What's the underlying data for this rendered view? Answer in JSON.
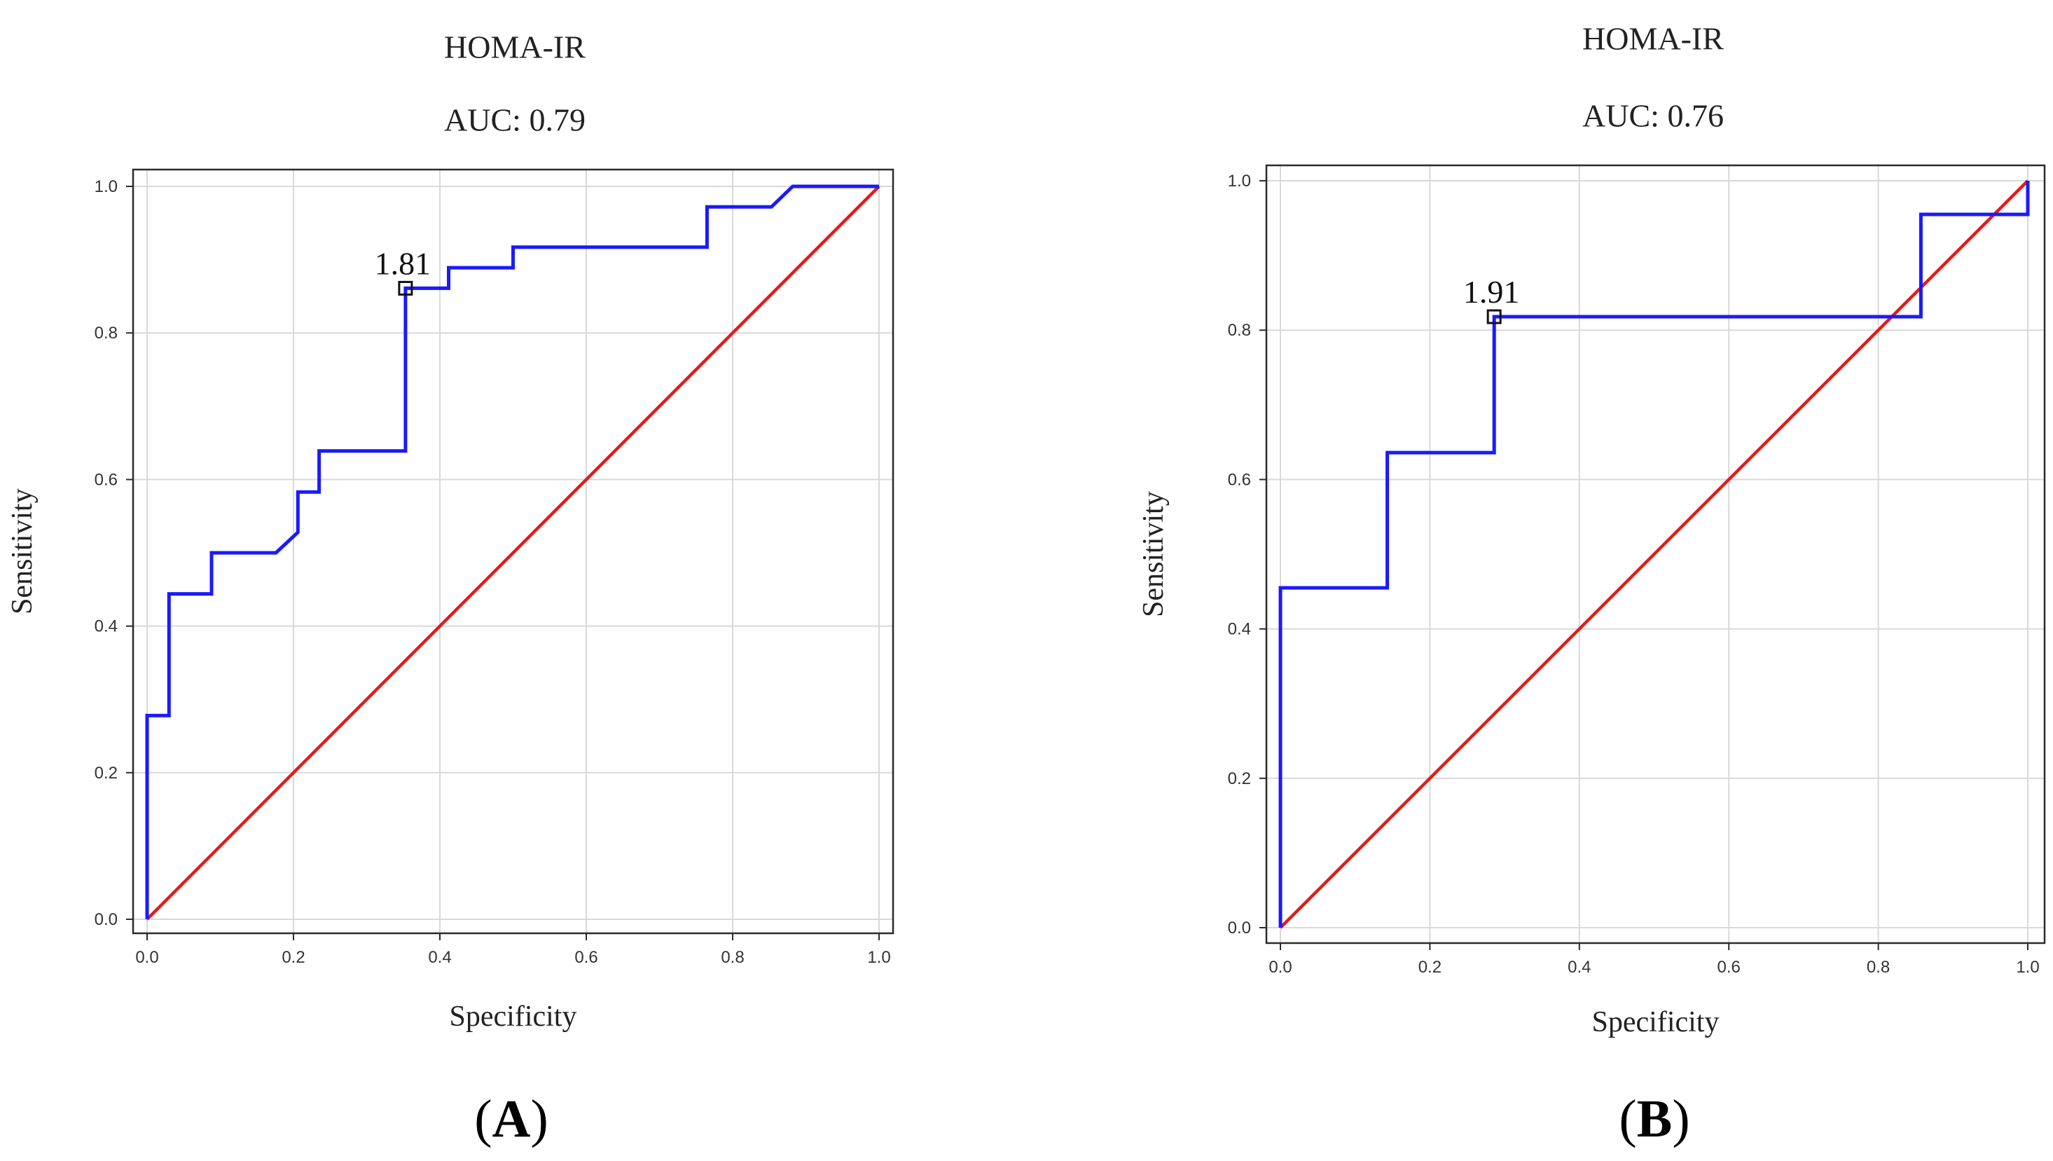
{
  "chart_data": [
    {
      "panel": "A",
      "type": "line",
      "title": "HOMA-IR",
      "subtitle": "AUC: 0.79",
      "xlabel": "Specificity",
      "ylabel": "Sensitivity",
      "xlim": [
        0,
        1
      ],
      "ylim": [
        0,
        1
      ],
      "xticks": [
        0.0,
        0.2,
        0.4,
        0.6,
        0.8,
        1.0
      ],
      "yticks": [
        0.0,
        0.2,
        0.4,
        0.6,
        0.8,
        1.0
      ],
      "xtick_labels": [
        "0.0",
        "0.2",
        "0.4",
        "0.6",
        "0.8",
        "1.0"
      ],
      "ytick_labels": [
        "0.0",
        "0.2",
        "0.4",
        "0.6",
        "0.8",
        "1.0"
      ],
      "grid": true,
      "series": [
        {
          "name": "ROC curve",
          "color": "#1a1aff",
          "x": [
            0,
            0,
            0.03,
            0.03,
            0.088,
            0.088,
            0.176,
            0.206,
            0.206,
            0.235,
            0.235,
            0.353,
            0.353,
            0.412,
            0.412,
            0.5,
            0.5,
            0.765,
            0.765,
            0.853,
            0.882,
            1.0
          ],
          "y": [
            0,
            0.278,
            0.278,
            0.444,
            0.444,
            0.5,
            0.5,
            0.528,
            0.583,
            0.583,
            0.639,
            0.639,
            0.861,
            0.861,
            0.889,
            0.889,
            0.917,
            0.917,
            0.972,
            0.972,
            1.0,
            1.0
          ]
        },
        {
          "name": "Reference line",
          "color": "#e61a1a",
          "x": [
            0,
            1
          ],
          "y": [
            0,
            1
          ]
        }
      ],
      "cutoff": {
        "label": "1.81",
        "x": 0.353,
        "y": 0.861
      }
    },
    {
      "panel": "B",
      "type": "line",
      "title": "HOMA-IR",
      "subtitle": "AUC: 0.76",
      "xlabel": "Specificity",
      "ylabel": "Sensitivity",
      "xlim": [
        0,
        1
      ],
      "ylim": [
        0,
        1
      ],
      "xticks": [
        0.0,
        0.2,
        0.4,
        0.6,
        0.8,
        1.0
      ],
      "yticks": [
        0.0,
        0.2,
        0.4,
        0.6,
        0.8,
        1.0
      ],
      "xtick_labels": [
        "0.0",
        "0.2",
        "0.4",
        "0.6",
        "0.8",
        "1.0"
      ],
      "ytick_labels": [
        "0.0",
        "0.2",
        "0.4",
        "0.6",
        "0.8",
        "1.0"
      ],
      "grid": true,
      "series": [
        {
          "name": "ROC curve",
          "color": "#1a1aff",
          "x": [
            0,
            0,
            0.143,
            0.143,
            0.286,
            0.286,
            0.857,
            0.857,
            1.0,
            1.0
          ],
          "y": [
            0,
            0.455,
            0.455,
            0.636,
            0.636,
            0.818,
            0.818,
            0.955,
            0.955,
            1.0
          ]
        },
        {
          "name": "Reference line",
          "color": "#e61a1a",
          "x": [
            0,
            1
          ],
          "y": [
            0,
            1
          ]
        }
      ],
      "cutoff": {
        "label": "1.91",
        "x": 0.286,
        "y": 0.818
      }
    }
  ]
}
